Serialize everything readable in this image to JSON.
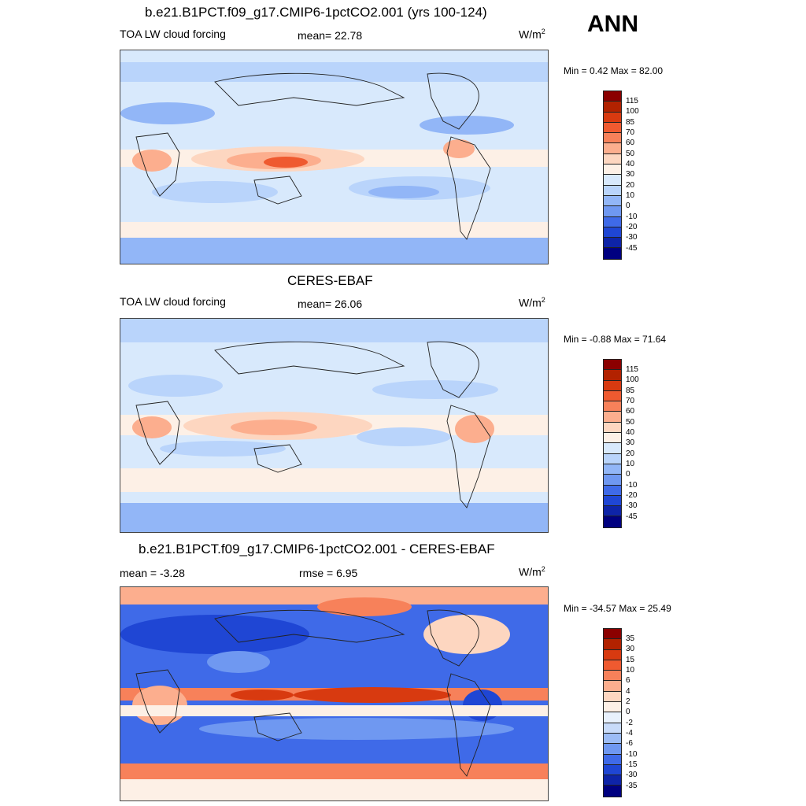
{
  "season": "ANN",
  "panels": [
    {
      "title": "b.e21.B1PCT.f09_g17.CMIP6-1pctCO2.001 (yrs 100-124)",
      "left_label": "TOA LW cloud forcing",
      "center_label": "mean=  22.78",
      "units": "W/m",
      "units_sup": "2",
      "minmax": "Min =   0.42 Max =  82.00",
      "colorbar_labels": [
        "115",
        "100",
        "85",
        "70",
        "60",
        "50",
        "40",
        "30",
        "20",
        "10",
        "0",
        "-10",
        "-20",
        "-30",
        "-45"
      ]
    },
    {
      "title": "CERES-EBAF",
      "left_label": "TOA LW cloud forcing",
      "center_label": "mean=  26.06",
      "units": "W/m",
      "units_sup": "2",
      "minmax": "Min =  -0.88 Max =  71.64",
      "colorbar_labels": [
        "115",
        "100",
        "85",
        "70",
        "60",
        "50",
        "40",
        "30",
        "20",
        "10",
        "0",
        "-10",
        "-20",
        "-30",
        "-45"
      ]
    },
    {
      "title": "b.e21.B1PCT.f09_g17.CMIP6-1pctCO2.001 - CERES-EBAF",
      "left_label": "mean =  -3.28",
      "center_label": "rmse =   6.95",
      "units": "W/m",
      "units_sup": "2",
      "minmax": "Min = -34.57 Max =  25.49",
      "colorbar_labels": [
        "35",
        "30",
        "15",
        "10",
        "6",
        "4",
        "2",
        "0",
        "-2",
        "-4",
        "-6",
        "-10",
        "-15",
        "-30",
        "-35"
      ]
    }
  ],
  "colors": {
    "field_scale": [
      "#8b0000",
      "#b22200",
      "#d83a10",
      "#ef5a30",
      "#f7815a",
      "#fcae8e",
      "#fdd6c0",
      "#fdf0e6",
      "#d8e9fc",
      "#b9d4fb",
      "#92b6f7",
      "#6f98f1",
      "#3f6ae8",
      "#1f46d4",
      "#0e24a8",
      "#000080"
    ],
    "diff_scale": [
      "#8b0000",
      "#b22200",
      "#d83a10",
      "#ef5a30",
      "#f7815a",
      "#fcae8e",
      "#fdd6c0",
      "#fdf0e6",
      "#e8f1fd",
      "#c8dbfa",
      "#9cbcf6",
      "#6f98f1",
      "#3f6ae8",
      "#1f46d4",
      "#0e24a8",
      "#000080"
    ]
  }
}
